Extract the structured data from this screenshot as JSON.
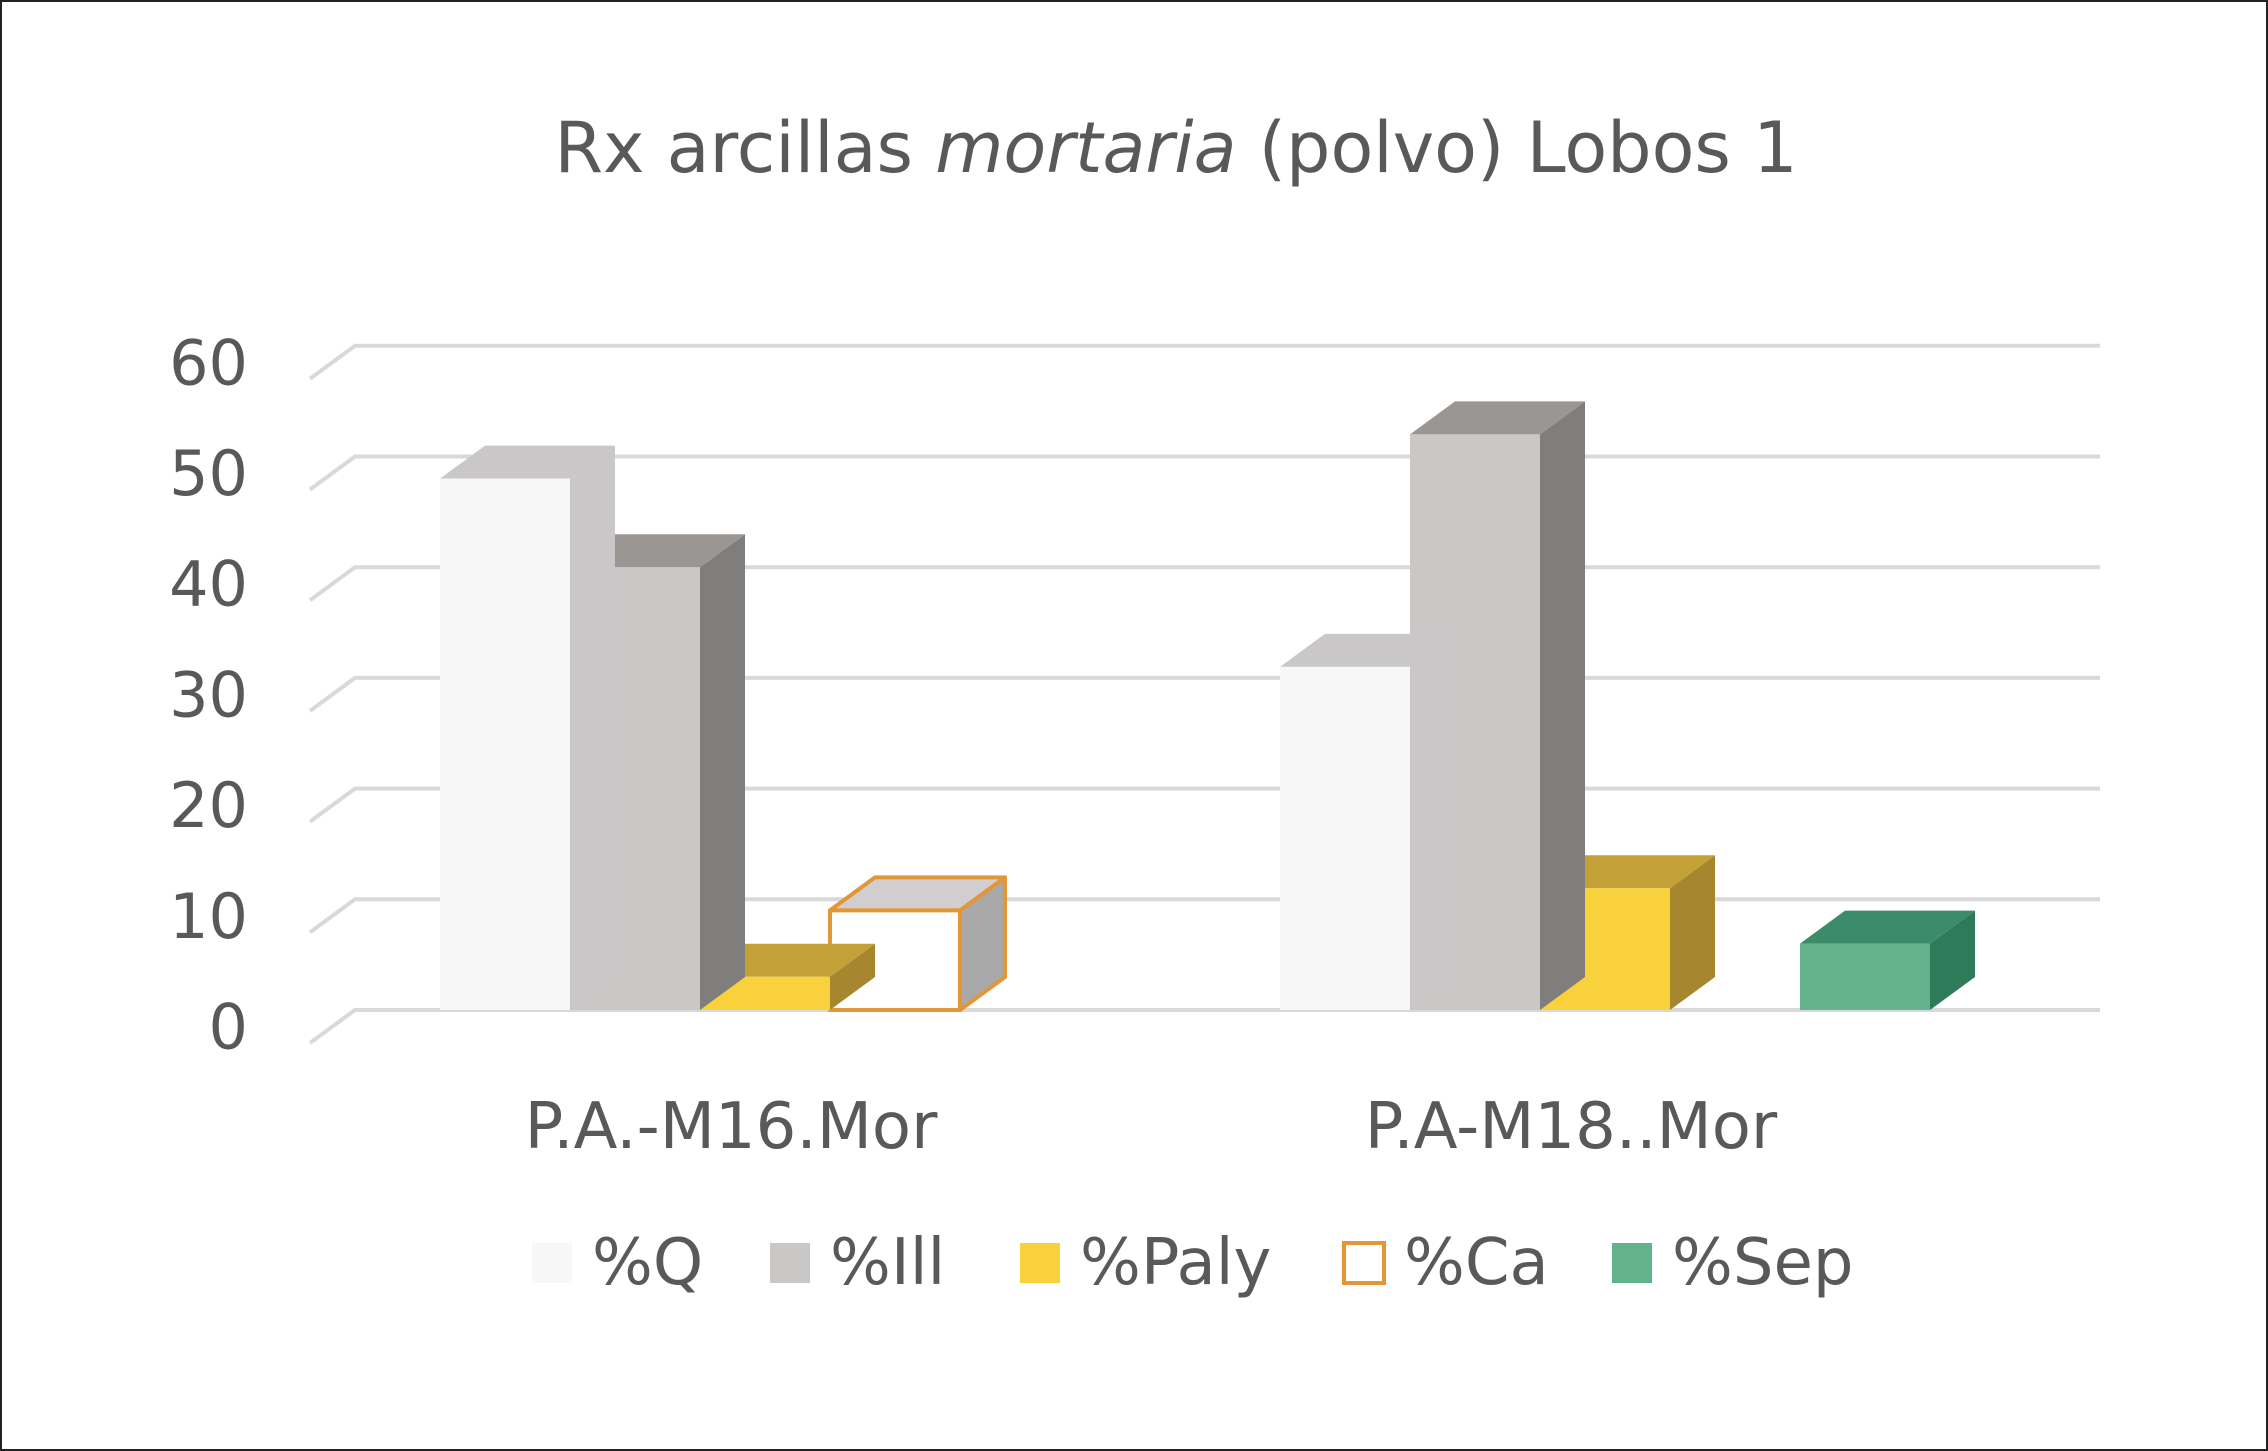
{
  "chart_data": {
    "type": "bar",
    "title": {
      "prefix": "Rx arcillas ",
      "italic": "mortaria",
      "suffix": " (polvo) Lobos 1"
    },
    "categories": [
      "P.A.-M16.Mor",
      "P.A-M18..Mor"
    ],
    "series": [
      {
        "name": "%Q",
        "values": [
          48,
          31
        ]
      },
      {
        "name": "%Ill",
        "values": [
          40,
          52
        ]
      },
      {
        "name": "%Paly",
        "values": [
          3,
          11
        ]
      },
      {
        "name": "%Ca",
        "values": [
          9,
          0
        ]
      },
      {
        "name": "%Sep",
        "values": [
          0,
          6
        ]
      }
    ],
    "ylim": [
      0,
      60
    ],
    "yticks": [
      "0",
      "10",
      "20",
      "30",
      "40",
      "50",
      "60"
    ],
    "grid": true,
    "legend_position": "bottom",
    "style": "3d-clustered-column",
    "colors": {
      "%Q": {
        "front": "#f7f7f7",
        "top": "#c9c7c7",
        "side": "#c9c7c7",
        "stroke": "none"
      },
      "%Ill": {
        "front": "#c9c8c6",
        "top": "#999694",
        "side": "#807e7c",
        "stroke": "none"
      },
      "%Paly": {
        "front": "#f8d13c",
        "top": "#c3a136",
        "side": "#a68730",
        "stroke": "none"
      },
      "%Ca": {
        "front": "#ffffff",
        "top": "#d0cece",
        "side": "#a9a9a9",
        "stroke": "#e39637"
      },
      "%Sep": {
        "front": "#64b28c",
        "top": "#3b8c69",
        "side": "#2f7b59",
        "stroke": "none"
      }
    }
  }
}
